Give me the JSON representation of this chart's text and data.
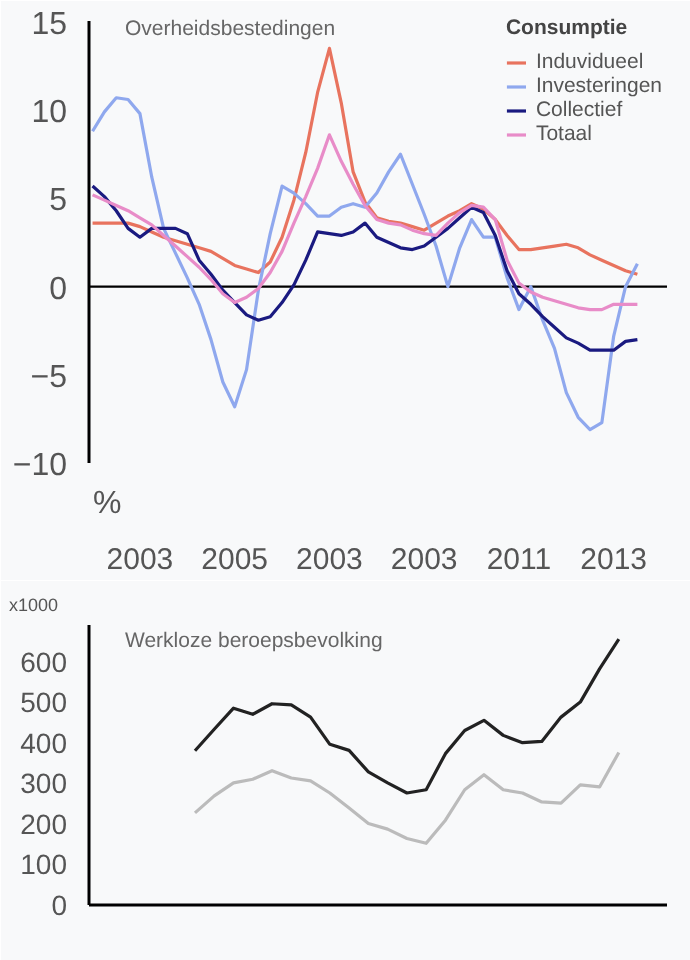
{
  "chart_data": [
    {
      "type": "line",
      "title": "Overheidsbestedingen",
      "ylabel": "%",
      "legend_title": "Consumptie",
      "legend": "top right",
      "grid": false,
      "categories": [
        null,
        null,
        null,
        null,
        "2003",
        null,
        null,
        null,
        null,
        null,
        null,
        null,
        "2005",
        null,
        null,
        null,
        null,
        null,
        null,
        null,
        "2003",
        null,
        null,
        null,
        null,
        null,
        null,
        null,
        "2003",
        null,
        null,
        null,
        null,
        null,
        null,
        null,
        "2011",
        null,
        null,
        null,
        null,
        null,
        null,
        null,
        "2013",
        null,
        null
      ],
      "ylim": [
        -13.5,
        15.5
      ],
      "yticks": [
        -10,
        -5,
        0,
        5,
        10,
        15
      ],
      "ref_lines": [
        {
          "axis": "y",
          "value": 0,
          "color": "#000000"
        }
      ],
      "series": [
        {
          "name": "Induvidueel",
          "color": "#e8735e",
          "values": [
            3.6,
            3.6,
            3.6,
            3.6,
            3.4,
            3.1,
            2.8,
            2.6,
            2.4,
            2.2,
            2.0,
            1.6,
            1.2,
            1.0,
            0.8,
            1.4,
            2.8,
            4.9,
            7.6,
            11.0,
            13.5,
            10.4,
            6.5,
            4.8,
            3.9,
            3.7,
            3.6,
            3.4,
            3.2,
            3.6,
            4.0,
            4.3,
            4.7,
            4.4,
            3.8,
            2.9,
            2.1,
            2.1,
            2.2,
            2.3,
            2.4,
            2.2,
            1.8,
            1.5,
            1.2,
            0.9,
            0.7
          ]
        },
        {
          "name": "Investeringen",
          "color": "#8fa8ee",
          "values": [
            8.8,
            9.9,
            10.7,
            10.6,
            9.8,
            6.2,
            3.3,
            1.9,
            0.5,
            -1.0,
            -3.0,
            -5.4,
            -6.8,
            -4.7,
            -0.2,
            3.0,
            5.7,
            5.3,
            4.7,
            4.0,
            4.0,
            4.5,
            4.7,
            4.5,
            5.3,
            6.5,
            7.5,
            5.8,
            4.1,
            2.3,
            0,
            2.2,
            3.8,
            2.8,
            2.8,
            0.5,
            -1.3,
            0,
            -1.9,
            -3.5,
            -6.0,
            -7.4,
            -8.1,
            -7.7,
            -2.8,
            0.0,
            1.3
          ]
        },
        {
          "name": "Collectief",
          "color": "#1a1a80",
          "values": [
            5.7,
            5.1,
            4.3,
            3.3,
            2.8,
            3.3,
            3.3,
            3.3,
            3.0,
            1.5,
            0.7,
            -0.2,
            -0.9,
            -1.6,
            -1.9,
            -1.7,
            -0.9,
            0.1,
            1.5,
            3.1,
            3.0,
            2.9,
            3.1,
            3.6,
            2.8,
            2.5,
            2.2,
            2.1,
            2.3,
            2.8,
            3.3,
            3.9,
            4.5,
            4.2,
            2.9,
            0.9,
            -0.4,
            -1.0,
            -1.7,
            -2.3,
            -2.9,
            -3.2,
            -3.6,
            -3.6,
            -3.6,
            -3.1,
            -3.0
          ]
        },
        {
          "name": "Totaal",
          "color": "#e88cc8",
          "values": [
            5.2,
            4.9,
            4.6,
            4.3,
            3.9,
            3.5,
            2.9,
            2.3,
            1.7,
            1.1,
            0.4,
            -0.4,
            -0.9,
            -0.6,
            -0.1,
            0.8,
            2.0,
            3.6,
            5.1,
            6.7,
            8.6,
            7.1,
            5.8,
            4.6,
            3.8,
            3.6,
            3.5,
            3.2,
            3.0,
            2.9,
            3.6,
            4.2,
            4.6,
            4.5,
            3.8,
            1.5,
            0.2,
            -0.3,
            -0.6,
            -0.8,
            -1.0,
            -1.2,
            -1.3,
            -1.3,
            -1.0,
            -1.0,
            -1.0
          ]
        }
      ]
    },
    {
      "type": "line",
      "title": "Werkloze beroepsbevolking",
      "ylabel": "x1000",
      "tick_labels": "y",
      "grid": false,
      "categories": [
        null,
        null,
        null,
        null,
        null,
        null,
        null,
        null,
        null,
        null,
        null,
        null,
        null,
        null,
        null,
        null,
        null,
        null,
        null,
        null,
        null,
        null,
        null,
        null,
        null,
        null,
        null,
        null,
        null,
        null
      ],
      "ylim": [
        0,
        690
      ],
      "yticks": [
        0,
        100,
        200,
        300,
        400,
        500,
        600
      ],
      "series": [
        {
          "color": "#222222",
          "values": [
            null,
            null,
            null,
            null,
            null,
            380,
            433,
            485,
            470,
            496,
            493,
            463,
            396,
            381,
            328,
            301,
            276,
            284,
            373,
            430,
            455,
            418,
            400,
            403,
            463,
            500,
            582,
            655,
            null,
            null
          ]
        },
        {
          "color": "#bbbbbb",
          "values": [
            null,
            null,
            null,
            null,
            null,
            227,
            269,
            301,
            310,
            331,
            313,
            306,
            276,
            239,
            201,
            187,
            164,
            152,
            209,
            284,
            321,
            284,
            276,
            254,
            251,
            296,
            291,
            376,
            null,
            null
          ]
        }
      ]
    }
  ]
}
